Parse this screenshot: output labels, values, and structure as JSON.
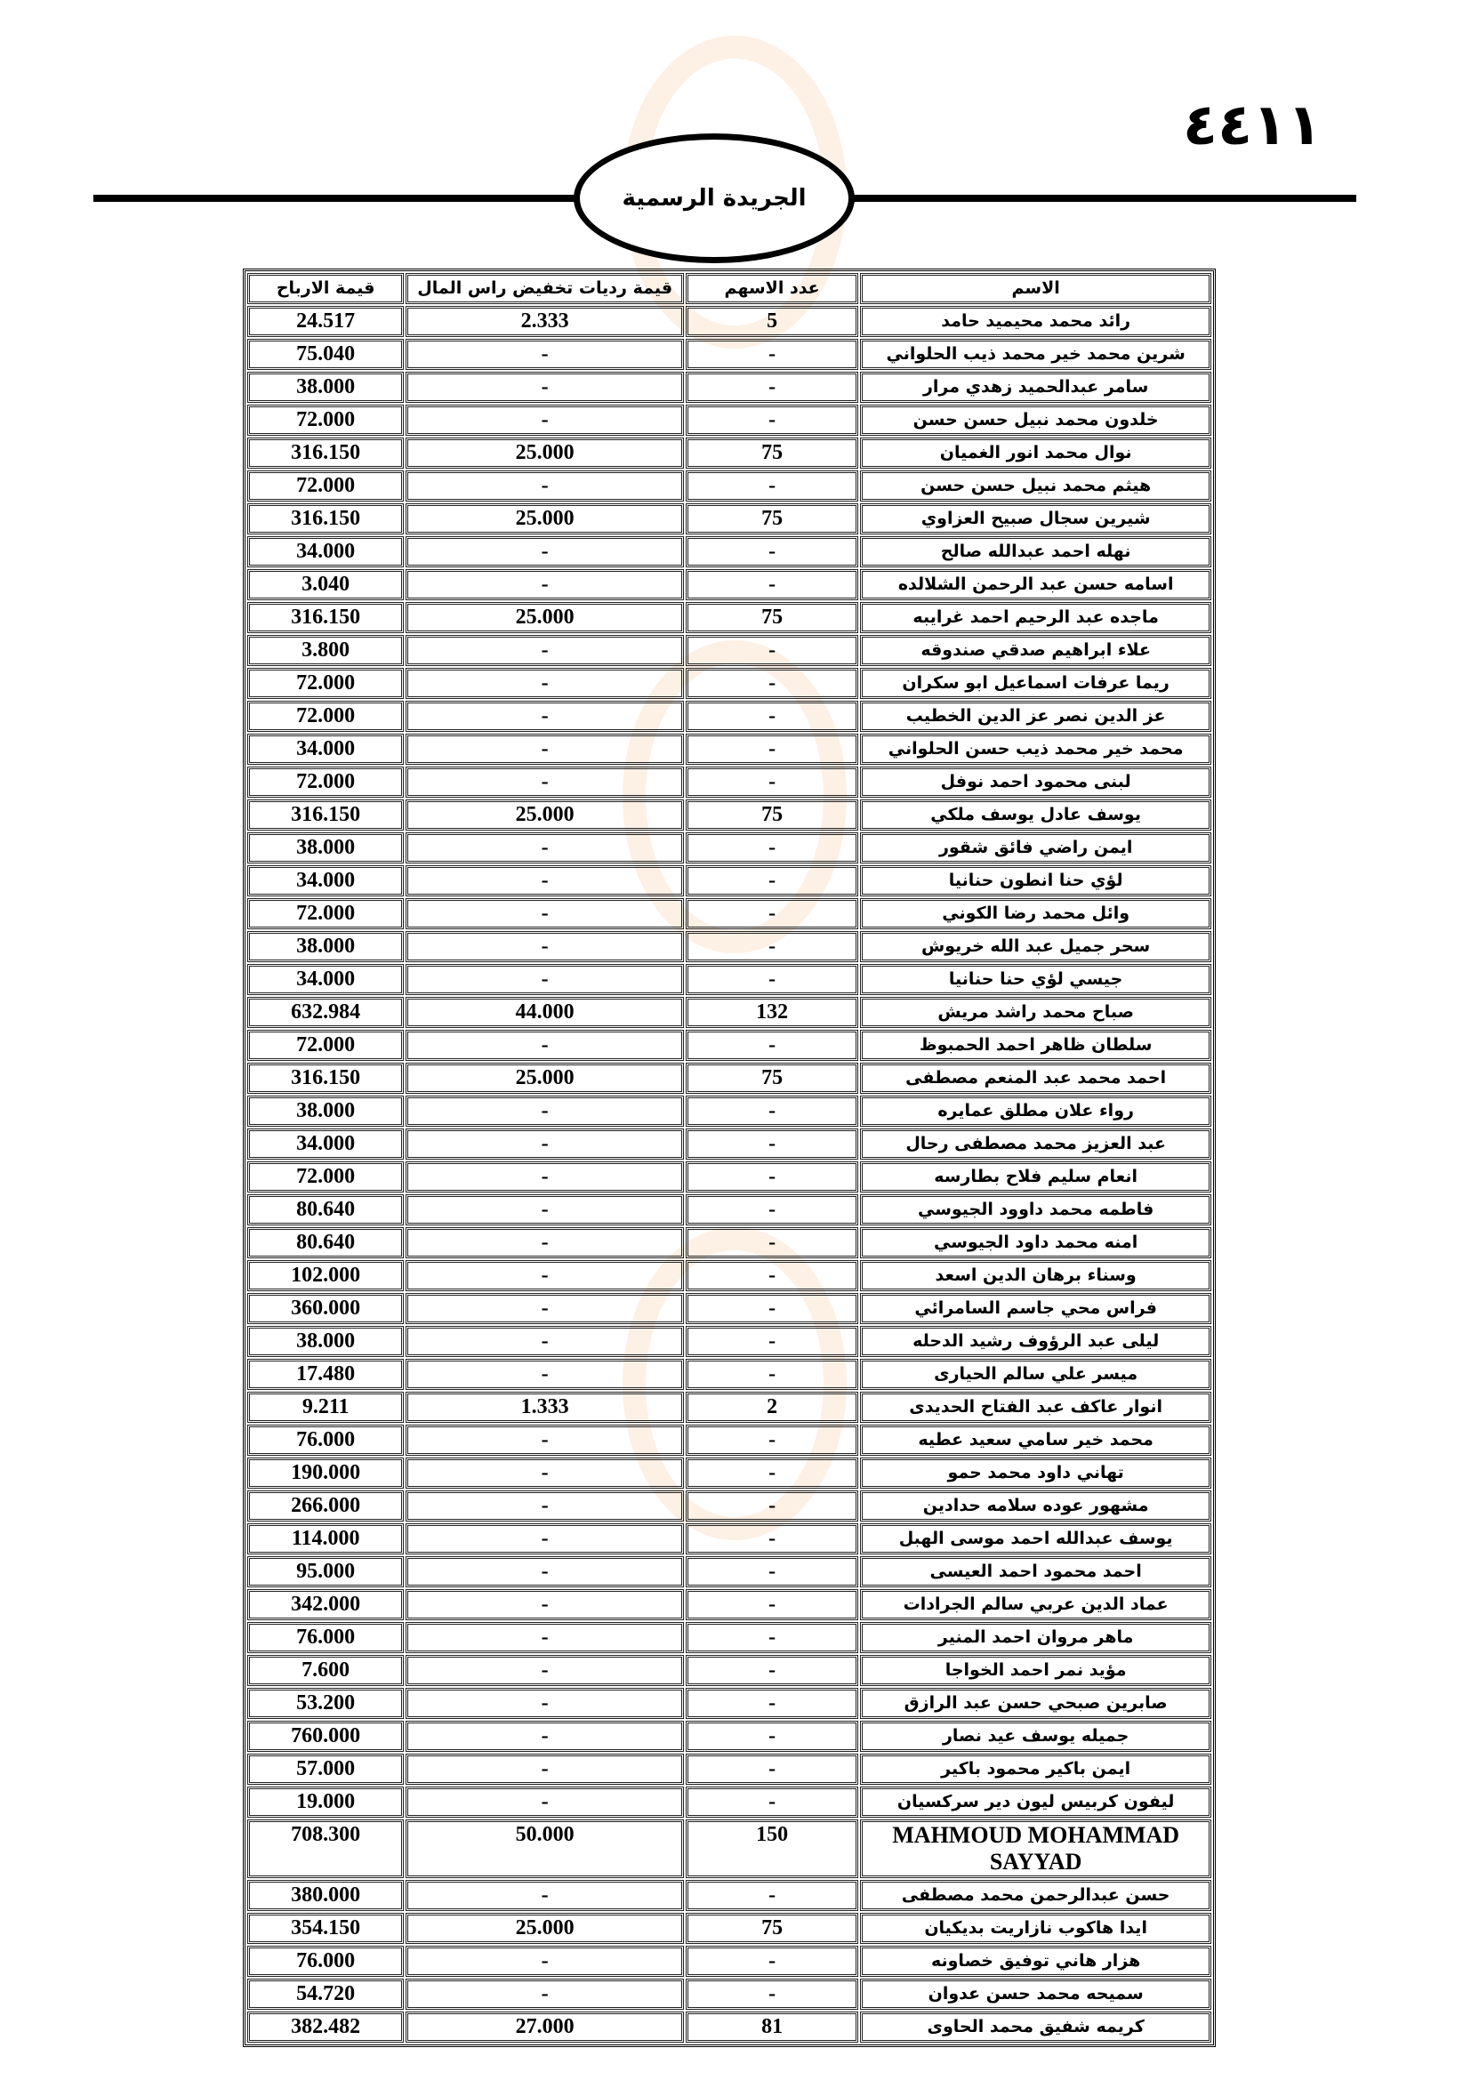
{
  "page_number": "٤٤١١",
  "masthead_title": "الجريدة الرسمية",
  "table": {
    "headers": {
      "name": "الاسم",
      "shares": "عدد الاسهم",
      "reduction": "قيمة رديات تخفيض  راس المال",
      "profits": "قيمة الارباح"
    },
    "rows": [
      {
        "name": "رائد محمد محيميد حامد",
        "shares": "5",
        "reduction": "2.333",
        "profits": "24.517"
      },
      {
        "name": "شرين محمد خير محمد ذيب الحلواني",
        "shares": "-",
        "reduction": "-",
        "profits": "75.040"
      },
      {
        "name": "سامر عبدالحميد زهدي مرار",
        "shares": "-",
        "reduction": "-",
        "profits": "38.000"
      },
      {
        "name": "خلدون محمد نبيل حسن حسن",
        "shares": "-",
        "reduction": "-",
        "profits": "72.000"
      },
      {
        "name": "نوال محمد انور الغميان",
        "shares": "75",
        "reduction": "25.000",
        "profits": "316.150"
      },
      {
        "name": "هيثم محمد نبيل حسن حسن",
        "shares": "-",
        "reduction": "-",
        "profits": "72.000"
      },
      {
        "name": "شيرين سجال صبيح العزاوي",
        "shares": "75",
        "reduction": "25.000",
        "profits": "316.150"
      },
      {
        "name": "نهله احمد عبدالله صالح",
        "shares": "-",
        "reduction": "-",
        "profits": "34.000"
      },
      {
        "name": "اسامه حسن عبد الرحمن الشلالده",
        "shares": "-",
        "reduction": "-",
        "profits": "3.040"
      },
      {
        "name": "ماجده عبد الرحيم احمد غرايبه",
        "shares": "75",
        "reduction": "25.000",
        "profits": "316.150"
      },
      {
        "name": "علاء ابراهيم صدقي صندوقه",
        "shares": "-",
        "reduction": "-",
        "profits": "3.800"
      },
      {
        "name": "ريما عرفات اسماعيل ابو سكران",
        "shares": "-",
        "reduction": "-",
        "profits": "72.000"
      },
      {
        "name": "عز الدين نصر عز الدين الخطيب",
        "shares": "-",
        "reduction": "-",
        "profits": "72.000"
      },
      {
        "name": "محمد خير محمد ذيب حسن الحلواني",
        "shares": "-",
        "reduction": "-",
        "profits": "34.000"
      },
      {
        "name": "لبنى محمود احمد نوفل",
        "shares": "-",
        "reduction": "-",
        "profits": "72.000"
      },
      {
        "name": "يوسف عادل يوسف ملكي",
        "shares": "75",
        "reduction": "25.000",
        "profits": "316.150"
      },
      {
        "name": "ايمن راضي فائق شقور",
        "shares": "-",
        "reduction": "-",
        "profits": "38.000"
      },
      {
        "name": "لؤي حنا انطون حنانيا",
        "shares": "-",
        "reduction": "-",
        "profits": "34.000"
      },
      {
        "name": "وائل محمد رضا الكوني",
        "shares": "-",
        "reduction": "-",
        "profits": "72.000"
      },
      {
        "name": "سحر جميل عبد الله خريوش",
        "shares": "-",
        "reduction": "-",
        "profits": "38.000"
      },
      {
        "name": "جيسي لؤي حنا حنانيا",
        "shares": "-",
        "reduction": "-",
        "profits": "34.000"
      },
      {
        "name": "صباح محمد راشد مريش",
        "shares": "132",
        "reduction": "44.000",
        "profits": "632.984"
      },
      {
        "name": "سلطان ظاهر احمد الحمبوظ",
        "shares": "-",
        "reduction": "-",
        "profits": "72.000"
      },
      {
        "name": "احمد محمد عبد المنعم مصطفى",
        "shares": "75",
        "reduction": "25.000",
        "profits": "316.150"
      },
      {
        "name": "رواء علان مطلق عمايره",
        "shares": "-",
        "reduction": "-",
        "profits": "38.000"
      },
      {
        "name": "عبد العزيز محمد مصطفى رحال",
        "shares": "-",
        "reduction": "-",
        "profits": "34.000"
      },
      {
        "name": "انعام سليم فلاح بطارسه",
        "shares": "-",
        "reduction": "-",
        "profits": "72.000"
      },
      {
        "name": "فاطمه محمد داوود الجيوسي",
        "shares": "-",
        "reduction": "-",
        "profits": "80.640"
      },
      {
        "name": "امنه محمد داود الجيوسي",
        "shares": "-",
        "reduction": "-",
        "profits": "80.640"
      },
      {
        "name": "وسناء برهان الدين اسعد",
        "shares": "-",
        "reduction": "-",
        "profits": "102.000"
      },
      {
        "name": "فراس محي جاسم السامرائي",
        "shares": "-",
        "reduction": "-",
        "profits": "360.000"
      },
      {
        "name": "ليلى عبد الرؤوف رشيد الدحله",
        "shares": "-",
        "reduction": "-",
        "profits": "38.000"
      },
      {
        "name": "ميسر علي سالم الحيارى",
        "shares": "-",
        "reduction": "-",
        "profits": "17.480"
      },
      {
        "name": "انوار عاكف عبد الفتاح الحديدى",
        "shares": "2",
        "reduction": "1.333",
        "profits": "9.211"
      },
      {
        "name": "محمد خير سامي سعيد عطيه",
        "shares": "-",
        "reduction": "-",
        "profits": "76.000"
      },
      {
        "name": "تهاني داود محمد حمو",
        "shares": "-",
        "reduction": "-",
        "profits": "190.000"
      },
      {
        "name": "مشهور عوده سلامه حدادين",
        "shares": "-",
        "reduction": "-",
        "profits": "266.000"
      },
      {
        "name": "يوسف عبدالله احمد موسى الهبل",
        "shares": "-",
        "reduction": "-",
        "profits": "114.000"
      },
      {
        "name": "احمد محمود احمد العيسى",
        "shares": "-",
        "reduction": "-",
        "profits": "95.000"
      },
      {
        "name": "عماد الدين عربي سالم الجرادات",
        "shares": "-",
        "reduction": "-",
        "profits": "342.000"
      },
      {
        "name": "ماهر مروان احمد المنير",
        "shares": "-",
        "reduction": "-",
        "profits": "76.000"
      },
      {
        "name": "مؤيد نمر احمد الخواجا",
        "shares": "-",
        "reduction": "-",
        "profits": "7.600"
      },
      {
        "name": "صابرين صبحي حسن عبد الرازق",
        "shares": "-",
        "reduction": "-",
        "profits": "53.200"
      },
      {
        "name": "جميله يوسف عيد نصار",
        "shares": "-",
        "reduction": "-",
        "profits": "760.000"
      },
      {
        "name": "ايمن باكير محمود باكير",
        "shares": "-",
        "reduction": "-",
        "profits": "57.000"
      },
      {
        "name": "ليفون كربيس ليون دير سركسيان",
        "shares": "-",
        "reduction": "-",
        "profits": "19.000"
      },
      {
        "name": "MAHMOUD MOHAMMAD SAYYAD",
        "shares": "150",
        "reduction": "50.000",
        "profits": "708.300",
        "latin": true
      },
      {
        "name": "حسن عبدالرحمن محمد مصطفى",
        "shares": "-",
        "reduction": "-",
        "profits": "380.000"
      },
      {
        "name": "ايدا هاكوب نازاريت بديكيان",
        "shares": "75",
        "reduction": "25.000",
        "profits": "354.150"
      },
      {
        "name": "هزار هاني توفيق خصاونه",
        "shares": "-",
        "reduction": "-",
        "profits": "76.000"
      },
      {
        "name": "سميحه محمد حسن عدوان",
        "shares": "-",
        "reduction": "-",
        "profits": "54.720"
      },
      {
        "name": "كريمه شفيق محمد الحاوى",
        "shares": "81",
        "reduction": "27.000",
        "profits": "382.482"
      }
    ]
  }
}
